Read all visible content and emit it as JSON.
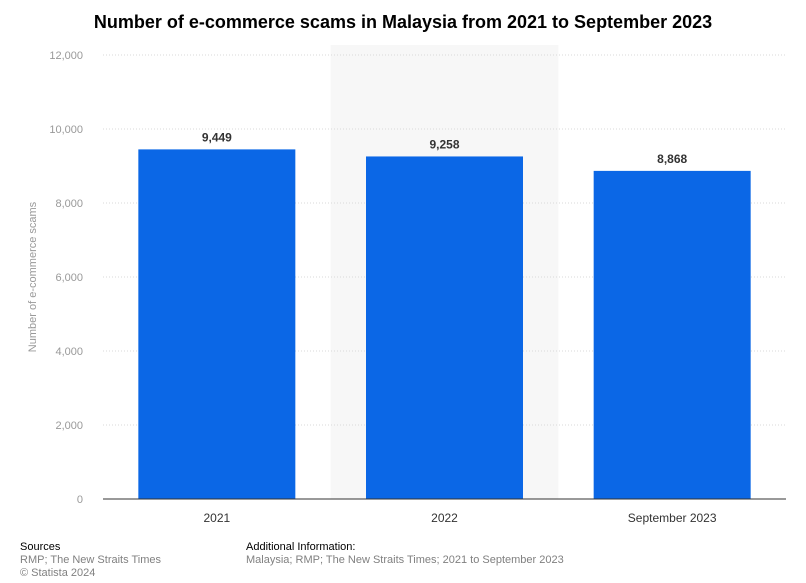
{
  "title": "Number of e-commerce scams in Malaysia from 2021 to September 2023",
  "chart_data": {
    "type": "bar",
    "categories": [
      "2021",
      "2022",
      "September 2023"
    ],
    "values": [
      9449,
      9258,
      8868
    ],
    "value_labels": [
      "9,449",
      "9,258",
      "8,868"
    ],
    "ylabel": "Number of e-commerce scams",
    "xlabel": "",
    "ylim": [
      0,
      12000
    ],
    "yticks": [
      0,
      2000,
      4000,
      6000,
      8000,
      10000,
      12000
    ],
    "ytick_labels": [
      "0",
      "2,000",
      "4,000",
      "6,000",
      "8,000",
      "10,000",
      "12,000"
    ],
    "grid": true,
    "bar_color": "#0b67e6",
    "highlight_band_color": "#f7f7f7"
  },
  "footer": {
    "sources_heading": "Sources",
    "sources_text": "RMP; The New Straits Times",
    "copyright": "© Statista 2024",
    "additional_heading": "Additional Information:",
    "additional_text": "Malaysia; RMP; The New Straits Times; 2021 to September 2023"
  }
}
